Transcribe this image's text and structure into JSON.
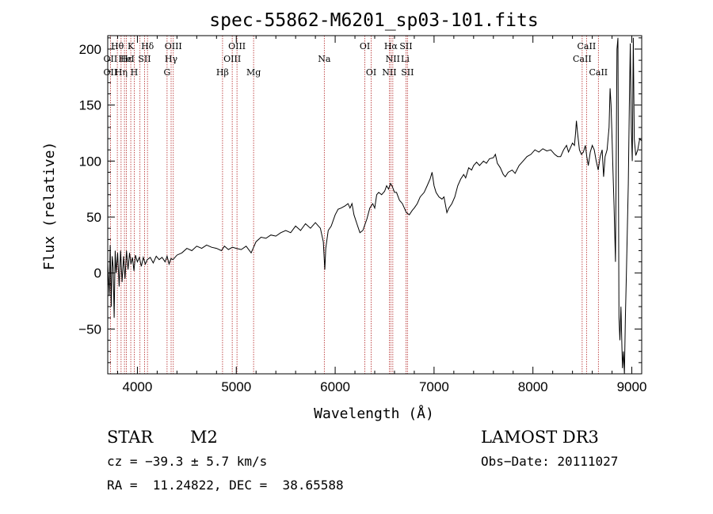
{
  "colors": {
    "spectrum": "#000000",
    "line_marker": "#b22222",
    "axes": "#000000",
    "background": "#ffffff"
  },
  "chart_data": {
    "type": "line",
    "title": "spec-55862-M6201_sp03-101.fits",
    "xlabel": "Wavelength (Å)",
    "ylabel": "Flux (relative)",
    "xlim": [
      3700,
      9100
    ],
    "ylim": [
      -90,
      212
    ],
    "x_ticks": [
      4000,
      5000,
      6000,
      7000,
      8000,
      9000
    ],
    "y_ticks": [
      -50,
      0,
      50,
      100,
      150,
      200
    ],
    "x_tick_labels": [
      "4000",
      "5000",
      "6000",
      "7000",
      "8000",
      "9000"
    ],
    "y_tick_labels": [
      "−50",
      "0",
      "50",
      "100",
      "150",
      "200"
    ],
    "series": [
      {
        "name": "flux",
        "points": [
          [
            3700,
            10
          ],
          [
            3715,
            -20
          ],
          [
            3725,
            25
          ],
          [
            3735,
            -30
          ],
          [
            3745,
            15
          ],
          [
            3755,
            5
          ],
          [
            3765,
            -40
          ],
          [
            3775,
            20
          ],
          [
            3785,
            0
          ],
          [
            3800,
            18
          ],
          [
            3815,
            -12
          ],
          [
            3830,
            20
          ],
          [
            3845,
            -8
          ],
          [
            3860,
            15
          ],
          [
            3875,
            -5
          ],
          [
            3890,
            20
          ],
          [
            3905,
            3
          ],
          [
            3920,
            18
          ],
          [
            3935,
            8
          ],
          [
            3950,
            14
          ],
          [
            3965,
            2
          ],
          [
            3980,
            16
          ],
          [
            4000,
            10
          ],
          [
            4020,
            14
          ],
          [
            4040,
            6
          ],
          [
            4060,
            14
          ],
          [
            4080,
            8
          ],
          [
            4100,
            12
          ],
          [
            4130,
            14
          ],
          [
            4160,
            9
          ],
          [
            4190,
            15
          ],
          [
            4220,
            12
          ],
          [
            4250,
            14
          ],
          [
            4280,
            10
          ],
          [
            4300,
            15
          ],
          [
            4320,
            8
          ],
          [
            4340,
            13
          ],
          [
            4360,
            12
          ],
          [
            4400,
            16
          ],
          [
            4450,
            18
          ],
          [
            4500,
            22
          ],
          [
            4550,
            20
          ],
          [
            4600,
            24
          ],
          [
            4650,
            22
          ],
          [
            4700,
            25
          ],
          [
            4750,
            23
          ],
          [
            4800,
            22
          ],
          [
            4850,
            20
          ],
          [
            4880,
            24
          ],
          [
            4920,
            21
          ],
          [
            4960,
            23
          ],
          [
            5000,
            22
          ],
          [
            5050,
            21
          ],
          [
            5100,
            24
          ],
          [
            5150,
            18
          ],
          [
            5200,
            28
          ],
          [
            5250,
            32
          ],
          [
            5300,
            31
          ],
          [
            5350,
            34
          ],
          [
            5400,
            33
          ],
          [
            5450,
            36
          ],
          [
            5500,
            38
          ],
          [
            5550,
            36
          ],
          [
            5600,
            42
          ],
          [
            5650,
            38
          ],
          [
            5700,
            44
          ],
          [
            5750,
            40
          ],
          [
            5800,
            45
          ],
          [
            5850,
            40
          ],
          [
            5880,
            28
          ],
          [
            5895,
            3
          ],
          [
            5905,
            22
          ],
          [
            5930,
            38
          ],
          [
            5960,
            42
          ],
          [
            6000,
            52
          ],
          [
            6030,
            57
          ],
          [
            6060,
            58
          ],
          [
            6100,
            60
          ],
          [
            6130,
            62
          ],
          [
            6150,
            58
          ],
          [
            6170,
            62
          ],
          [
            6190,
            52
          ],
          [
            6220,
            44
          ],
          [
            6250,
            36
          ],
          [
            6280,
            38
          ],
          [
            6320,
            48
          ],
          [
            6350,
            58
          ],
          [
            6380,
            62
          ],
          [
            6400,
            58
          ],
          [
            6420,
            70
          ],
          [
            6440,
            72
          ],
          [
            6470,
            70
          ],
          [
            6500,
            73
          ],
          [
            6520,
            78
          ],
          [
            6540,
            75
          ],
          [
            6560,
            80
          ],
          [
            6575,
            78
          ],
          [
            6600,
            72
          ],
          [
            6620,
            72
          ],
          [
            6650,
            65
          ],
          [
            6680,
            62
          ],
          [
            6700,
            58
          ],
          [
            6720,
            54
          ],
          [
            6750,
            52
          ],
          [
            6780,
            56
          ],
          [
            6800,
            58
          ],
          [
            6830,
            62
          ],
          [
            6860,
            68
          ],
          [
            6900,
            72
          ],
          [
            6930,
            78
          ],
          [
            6960,
            84
          ],
          [
            6980,
            90
          ],
          [
            7000,
            78
          ],
          [
            7020,
            72
          ],
          [
            7050,
            68
          ],
          [
            7080,
            66
          ],
          [
            7100,
            68
          ],
          [
            7130,
            54
          ],
          [
            7150,
            58
          ],
          [
            7180,
            62
          ],
          [
            7210,
            68
          ],
          [
            7240,
            78
          ],
          [
            7270,
            84
          ],
          [
            7300,
            88
          ],
          [
            7320,
            85
          ],
          [
            7350,
            94
          ],
          [
            7380,
            92
          ],
          [
            7400,
            96
          ],
          [
            7430,
            99
          ],
          [
            7460,
            96
          ],
          [
            7500,
            100
          ],
          [
            7530,
            98
          ],
          [
            7560,
            102
          ],
          [
            7600,
            103
          ],
          [
            7620,
            106
          ],
          [
            7640,
            98
          ],
          [
            7670,
            94
          ],
          [
            7700,
            88
          ],
          [
            7720,
            86
          ],
          [
            7750,
            90
          ],
          [
            7790,
            92
          ],
          [
            7820,
            89
          ],
          [
            7860,
            96
          ],
          [
            7900,
            100
          ],
          [
            7940,
            104
          ],
          [
            7980,
            106
          ],
          [
            8020,
            110
          ],
          [
            8060,
            108
          ],
          [
            8100,
            111
          ],
          [
            8140,
            109
          ],
          [
            8180,
            110
          ],
          [
            8220,
            106
          ],
          [
            8250,
            104
          ],
          [
            8280,
            104
          ],
          [
            8310,
            110
          ],
          [
            8340,
            114
          ],
          [
            8360,
            108
          ],
          [
            8380,
            112
          ],
          [
            8400,
            116
          ],
          [
            8420,
            114
          ],
          [
            8430,
            124
          ],
          [
            8440,
            136
          ],
          [
            8450,
            126
          ],
          [
            8470,
            110
          ],
          [
            8490,
            106
          ],
          [
            8510,
            108
          ],
          [
            8530,
            114
          ],
          [
            8545,
            104
          ],
          [
            8560,
            96
          ],
          [
            8580,
            108
          ],
          [
            8600,
            114
          ],
          [
            8620,
            110
          ],
          [
            8640,
            100
          ],
          [
            8660,
            92
          ],
          [
            8680,
            104
          ],
          [
            8700,
            110
          ],
          [
            8715,
            86
          ],
          [
            8730,
            104
          ],
          [
            8750,
            110
          ],
          [
            8770,
            130
          ],
          [
            8780,
            165
          ],
          [
            8790,
            150
          ],
          [
            8800,
            120
          ],
          [
            8810,
            90
          ],
          [
            8820,
            60
          ],
          [
            8835,
            10
          ],
          [
            8850,
            200
          ],
          [
            8860,
            210
          ],
          [
            8870,
            -40
          ],
          [
            8880,
            -60
          ],
          [
            8890,
            -30
          ],
          [
            8905,
            -85
          ],
          [
            8915,
            -70
          ],
          [
            8925,
            -90
          ],
          [
            8935,
            -40
          ],
          [
            8945,
            0
          ],
          [
            8955,
            40
          ],
          [
            8965,
            80
          ],
          [
            8975,
            150
          ],
          [
            8985,
            205
          ],
          [
            8995,
            130
          ],
          [
            9005,
            100
          ],
          [
            9015,
            210
          ],
          [
            9025,
            120
          ],
          [
            9040,
            105
          ],
          [
            9060,
            110
          ],
          [
            9080,
            120
          ],
          [
            9100,
            118
          ]
        ]
      }
    ],
    "line_markers": [
      3727,
      3797,
      3835,
      3869,
      3889,
      3933,
      3968,
      4026,
      4072,
      4102,
      4300,
      4341,
      4363,
      4861,
      4959,
      5007,
      5175,
      5890,
      6300,
      6364,
      6548,
      6563,
      6583,
      6716,
      6731,
      8498,
      8542,
      8662
    ],
    "line_labels": [
      {
        "text": "OII",
        "wave": 3727,
        "row": 2
      },
      {
        "text": "OII",
        "wave": 3727,
        "row": 3
      },
      {
        "text": "Hθ",
        "wave": 3797,
        "row": 1
      },
      {
        "text": "Hε",
        "wave": 3889,
        "row": 2
      },
      {
        "text": "Hη",
        "wave": 3835,
        "row": 3
      },
      {
        "text": "K",
        "wave": 3933,
        "row": 1
      },
      {
        "text": "H",
        "wave": 3968,
        "row": 3
      },
      {
        "text": "HeI",
        "wave": 3889,
        "row": 2
      },
      {
        "text": "SII",
        "wave": 4072,
        "row": 2
      },
      {
        "text": "Hδ",
        "wave": 4102,
        "row": 1
      },
      {
        "text": "OIII",
        "wave": 4363,
        "row": 1
      },
      {
        "text": "Hγ",
        "wave": 4341,
        "row": 2
      },
      {
        "text": "G",
        "wave": 4300,
        "row": 3
      },
      {
        "text": "OIII",
        "wave": 5007,
        "row": 1
      },
      {
        "text": "OIII",
        "wave": 4959,
        "row": 2
      },
      {
        "text": "Hβ",
        "wave": 4861,
        "row": 3
      },
      {
        "text": "Mg",
        "wave": 5175,
        "row": 3
      },
      {
        "text": "Na",
        "wave": 5890,
        "row": 2
      },
      {
        "text": "OI",
        "wave": 6300,
        "row": 1
      },
      {
        "text": "OI",
        "wave": 6364,
        "row": 3
      },
      {
        "text": "Hα",
        "wave": 6563,
        "row": 1
      },
      {
        "text": "SII",
        "wave": 6716,
        "row": 1
      },
      {
        "text": "NII",
        "wave": 6583,
        "row": 2
      },
      {
        "text": "Li",
        "wave": 6708,
        "row": 2
      },
      {
        "text": "NII",
        "wave": 6548,
        "row": 3
      },
      {
        "text": "SII",
        "wave": 6731,
        "row": 3
      },
      {
        "text": "CaII",
        "wave": 8542,
        "row": 1
      },
      {
        "text": "CaII",
        "wave": 8498,
        "row": 2
      },
      {
        "text": "CaII",
        "wave": 8662,
        "row": 3
      }
    ]
  },
  "info": {
    "object_class": "STAR",
    "subclass": "M2",
    "survey": "LAMOST DR3",
    "redshift": "cz = −39.3 ± 5.7 km/s",
    "obs_date": "Obs−Date: 20111027",
    "coords": "RA =  11.24822, DEC =  38.65588"
  }
}
